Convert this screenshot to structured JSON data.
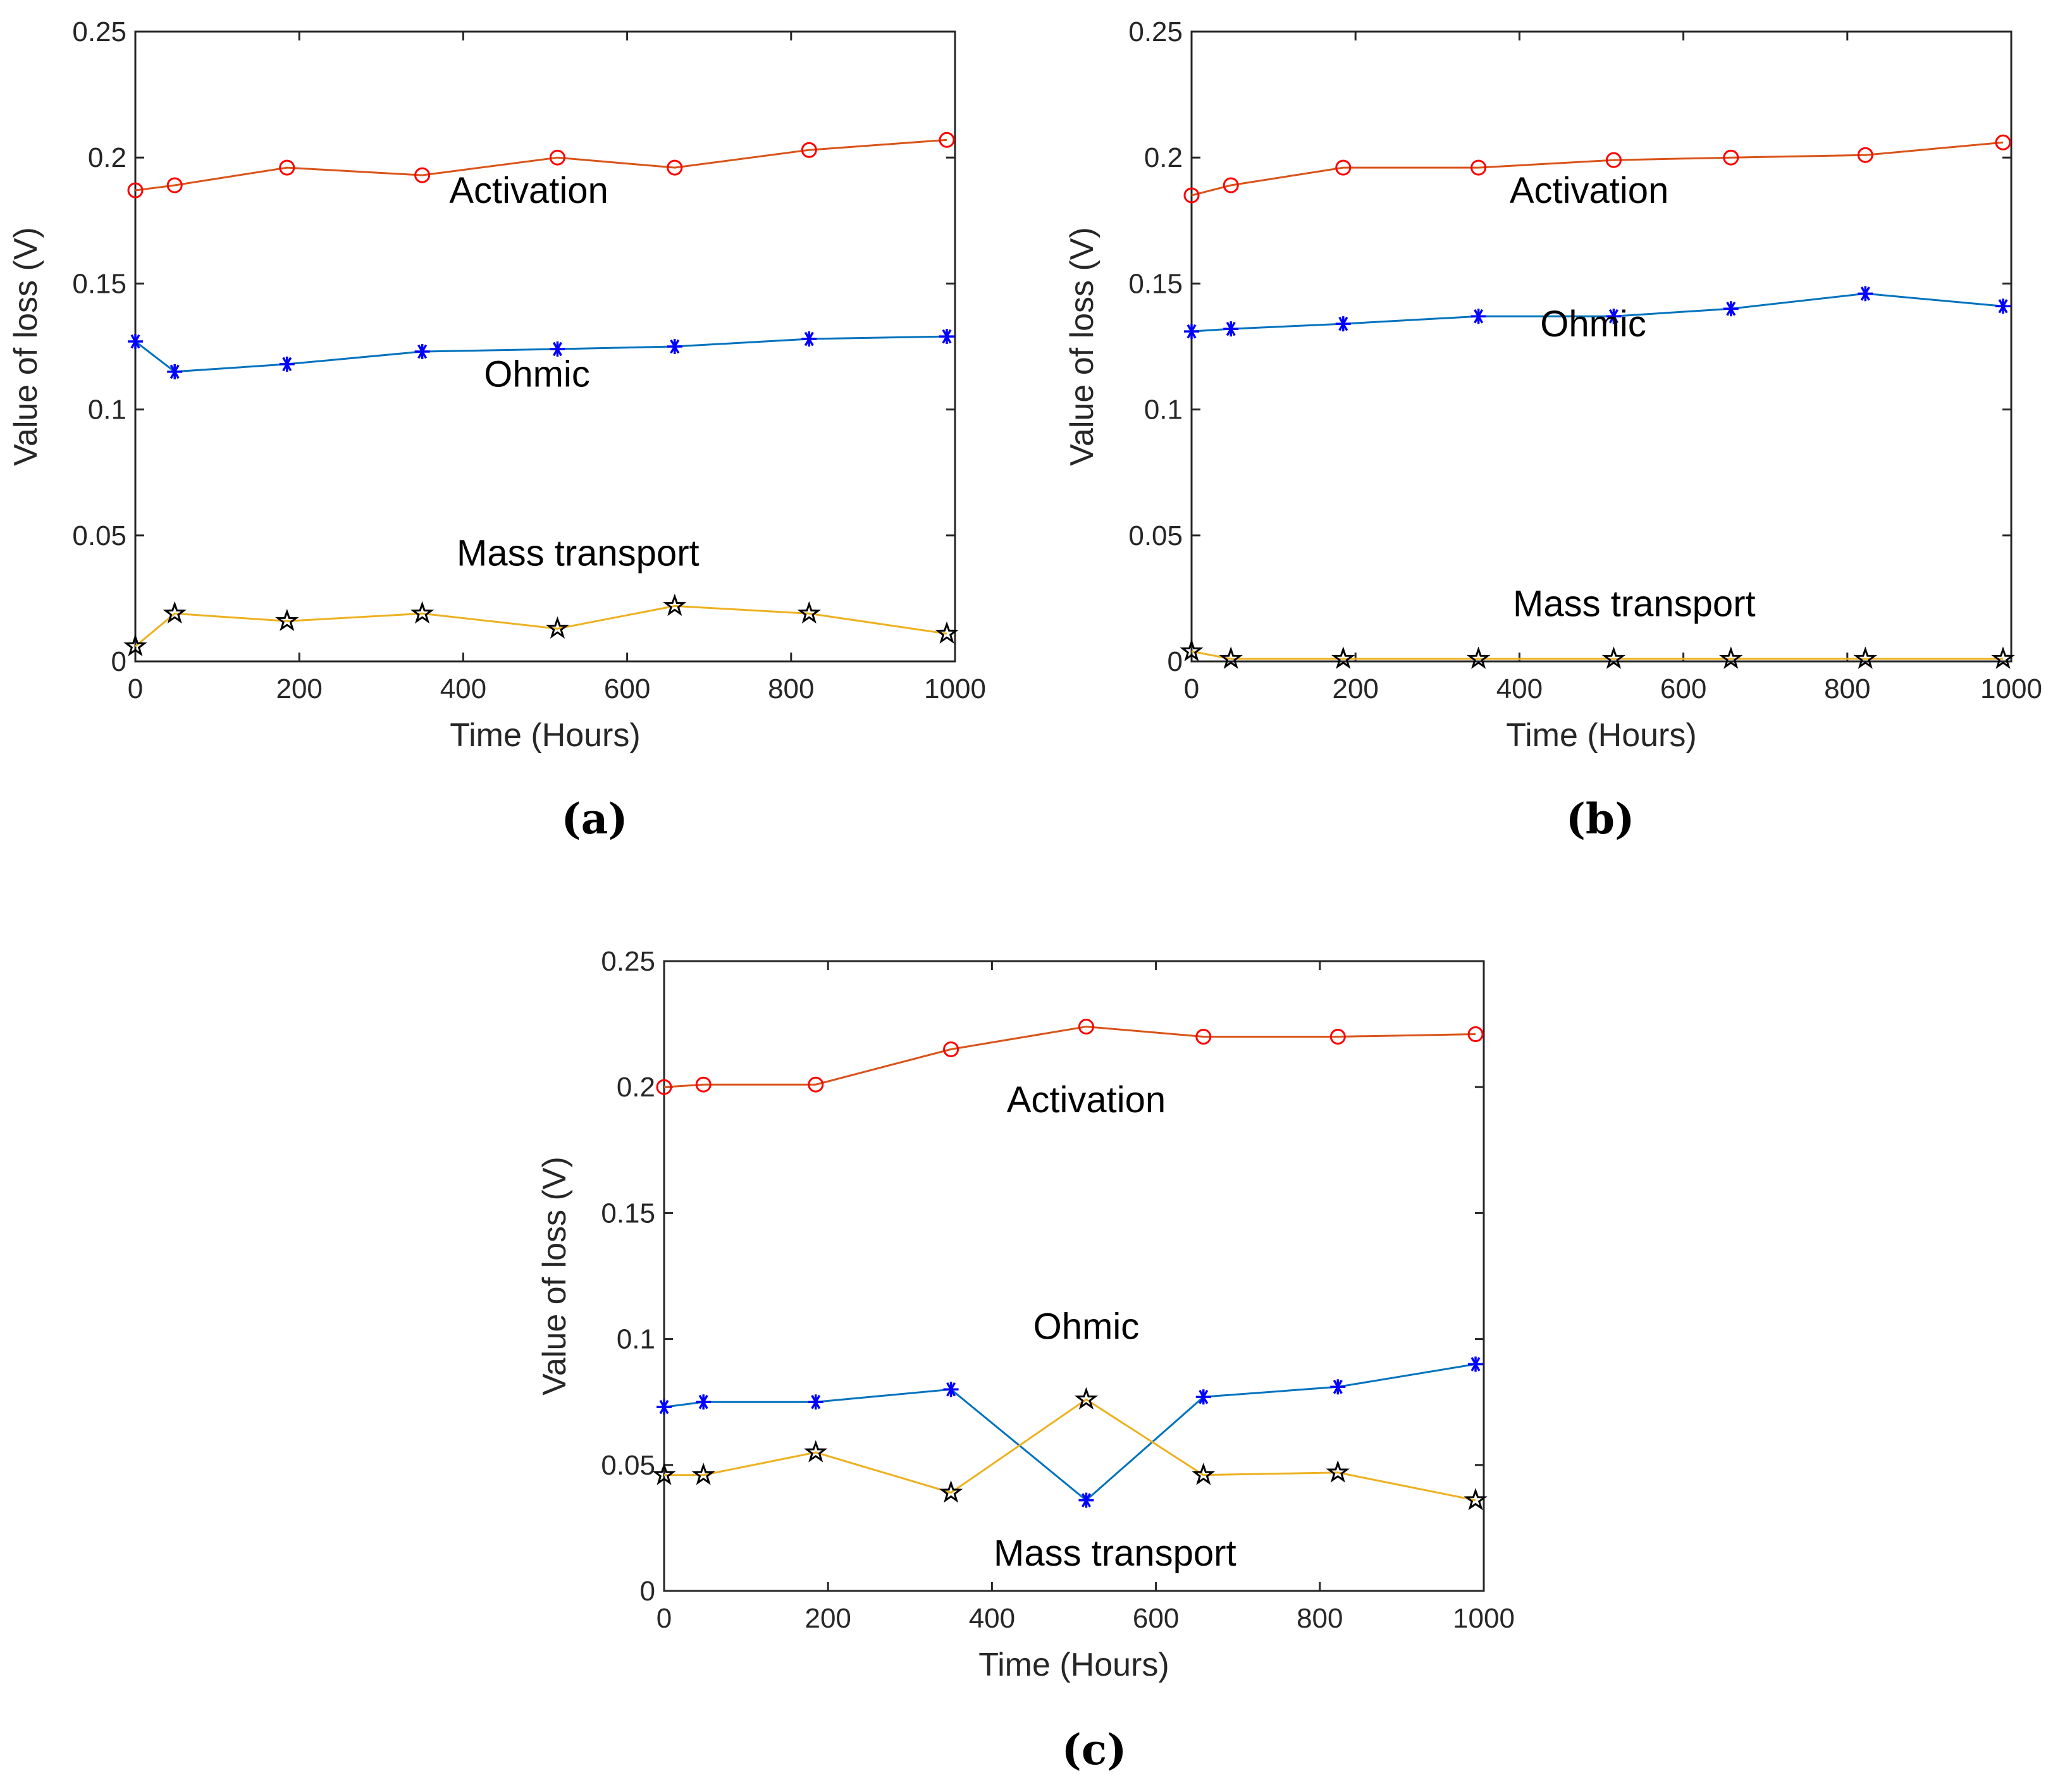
{
  "colors": {
    "activation_line": "#D95319",
    "activation_marker": "#FF0000",
    "ohmic_line": "#0072BD",
    "ohmic_marker": "#0000FF",
    "mass_line": "#EDB120",
    "mass_marker": "#000000"
  },
  "chart_data": [
    {
      "type": "line",
      "panel_label": "(a)",
      "xlabel": "Time (Hours)",
      "ylabel": "Value of loss (V)",
      "xlim": [
        0,
        1000
      ],
      "ylim": [
        0,
        0.25
      ],
      "xticks": [
        "0",
        "200",
        "400",
        "600",
        "800",
        "1000"
      ],
      "yticks": [
        "0",
        "0.05",
        "0.1",
        "0.15",
        "0.2",
        "0.25"
      ],
      "x": [
        0,
        48,
        185,
        350,
        515,
        658,
        822,
        990
      ],
      "series": [
        {
          "name": "Activation",
          "marker": "circle",
          "values": [
            0.187,
            0.189,
            0.196,
            0.193,
            0.2,
            0.196,
            0.203,
            0.207
          ]
        },
        {
          "name": "Ohmic",
          "marker": "asterisk",
          "values": [
            0.127,
            0.115,
            0.118,
            0.123,
            0.124,
            0.125,
            0.128,
            0.129
          ]
        },
        {
          "name": "Mass transport",
          "marker": "star",
          "values": [
            0.006,
            0.019,
            0.016,
            0.019,
            0.013,
            0.022,
            0.019,
            0.011
          ]
        }
      ],
      "annotations": [
        {
          "text": "Activation",
          "x": 480,
          "y": 0.182
        },
        {
          "text": "Ohmic",
          "x": 490,
          "y": 0.109
        },
        {
          "text": "Mass transport",
          "x": 540,
          "y": 0.038
        }
      ]
    },
    {
      "type": "line",
      "panel_label": "(b)",
      "xlabel": "Time (Hours)",
      "ylabel": "Value of loss (V)",
      "xlim": [
        0,
        1000
      ],
      "ylim": [
        0,
        0.25
      ],
      "xticks": [
        "0",
        "200",
        "400",
        "600",
        "800",
        "1000"
      ],
      "yticks": [
        "0",
        "0.05",
        "0.1",
        "0.15",
        "0.2",
        "0.25"
      ],
      "x": [
        0,
        48,
        185,
        350,
        515,
        658,
        822,
        990
      ],
      "series": [
        {
          "name": "Activation",
          "marker": "circle",
          "values": [
            0.185,
            0.189,
            0.196,
            0.196,
            0.199,
            0.2,
            0.201,
            0.206
          ]
        },
        {
          "name": "Ohmic",
          "marker": "asterisk",
          "values": [
            0.131,
            0.132,
            0.134,
            0.137,
            0.137,
            0.14,
            0.146,
            0.141
          ]
        },
        {
          "name": "Mass transport",
          "marker": "star",
          "values": [
            0.004,
            0.001,
            0.001,
            0.001,
            0.001,
            0.001,
            0.001,
            0.001
          ]
        }
      ],
      "annotations": [
        {
          "text": "Activation",
          "x": 485,
          "y": 0.182
        },
        {
          "text": "Ohmic",
          "x": 490,
          "y": 0.129
        },
        {
          "text": "Mass transport",
          "x": 540,
          "y": 0.018
        }
      ]
    },
    {
      "type": "line",
      "panel_label": "(c)",
      "xlabel": "Time (Hours)",
      "ylabel": "Value of loss (V)",
      "xlim": [
        0,
        1000
      ],
      "ylim": [
        0,
        0.25
      ],
      "xticks": [
        "0",
        "200",
        "400",
        "600",
        "800",
        "1000"
      ],
      "yticks": [
        "0",
        "0.05",
        "0.1",
        "0.15",
        "0.2",
        "0.25"
      ],
      "x": [
        0,
        48,
        185,
        350,
        515,
        658,
        822,
        990
      ],
      "series": [
        {
          "name": "Activation",
          "marker": "circle",
          "values": [
            0.2,
            0.201,
            0.201,
            0.215,
            0.224,
            0.22,
            0.22,
            0.221
          ]
        },
        {
          "name": "Ohmic",
          "marker": "asterisk",
          "values": [
            0.073,
            0.075,
            0.075,
            0.08,
            0.036,
            0.077,
            0.081,
            0.09
          ]
        },
        {
          "name": "Mass transport",
          "marker": "star",
          "values": [
            0.046,
            0.046,
            0.055,
            0.039,
            0.076,
            0.046,
            0.047,
            0.036
          ]
        }
      ],
      "annotations": [
        {
          "text": "Activation",
          "x": 515,
          "y": 0.19
        },
        {
          "text": "Ohmic",
          "x": 515,
          "y": 0.1
        },
        {
          "text": "Mass transport",
          "x": 550,
          "y": 0.01
        }
      ]
    }
  ]
}
